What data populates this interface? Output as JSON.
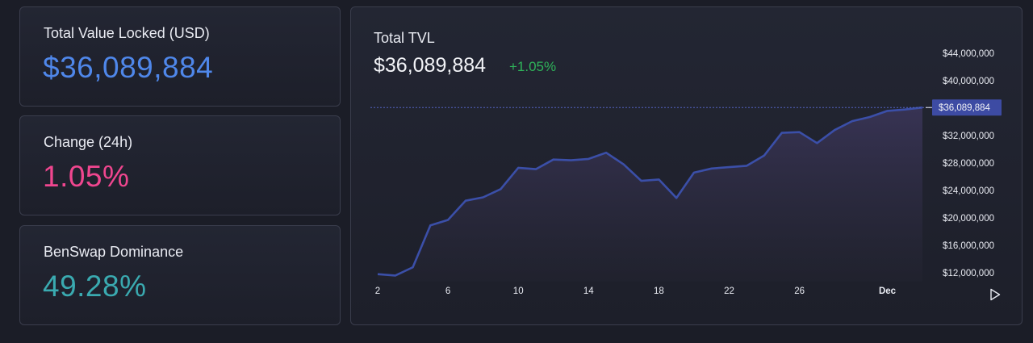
{
  "stats": {
    "tvl": {
      "label": "Total Value Locked (USD)",
      "value": "$36,089,884",
      "color": "#4f87ea"
    },
    "change": {
      "label": "Change (24h)",
      "value": "1.05%",
      "color": "#f0468f"
    },
    "dominance": {
      "label": "BenSwap Dominance",
      "value": "49.28%",
      "color": "#3aaab0"
    }
  },
  "chart": {
    "title": "Total TVL",
    "value": "$36,089,884",
    "change": "+1.05%",
    "change_color": "#2fb35a",
    "current_label": "$36,089,884",
    "play_icon": "play-icon"
  },
  "chart_data": {
    "type": "area",
    "x": [
      "2",
      "3",
      "4",
      "5",
      "6",
      "7",
      "8",
      "9",
      "10",
      "11",
      "12",
      "13",
      "14",
      "15",
      "16",
      "17",
      "18",
      "19",
      "20",
      "21",
      "22",
      "23",
      "24",
      "25",
      "26",
      "27",
      "28",
      "29",
      "30",
      "Dec",
      "2",
      "3"
    ],
    "values": [
      11.8,
      11.6,
      12.8,
      18.9,
      19.7,
      22.5,
      23.0,
      24.2,
      27.3,
      27.1,
      28.5,
      28.4,
      28.6,
      29.5,
      27.8,
      25.4,
      25.6,
      22.9,
      26.6,
      27.2,
      27.4,
      27.6,
      29.1,
      32.4,
      32.5,
      30.9,
      32.8,
      34.1,
      34.7,
      35.6,
      35.8,
      36.09
    ],
    "series": [
      {
        "values_unit": "USD millions"
      }
    ],
    "x_tick_labels": [
      "2",
      "6",
      "10",
      "14",
      "18",
      "22",
      "26",
      "Dec"
    ],
    "y_tick_labels": [
      "$12,000,000",
      "$16,000,000",
      "$20,000,000",
      "$24,000,000",
      "$28,000,000",
      "$32,000,000",
      "$40,000,000",
      "$44,000,000"
    ],
    "y_ticks": [
      12,
      16,
      20,
      24,
      28,
      32,
      40,
      44
    ],
    "ylim": [
      10.7,
      46.0
    ],
    "current_value": 36.089884,
    "line_color": "#3b4fa8",
    "grid": false
  }
}
